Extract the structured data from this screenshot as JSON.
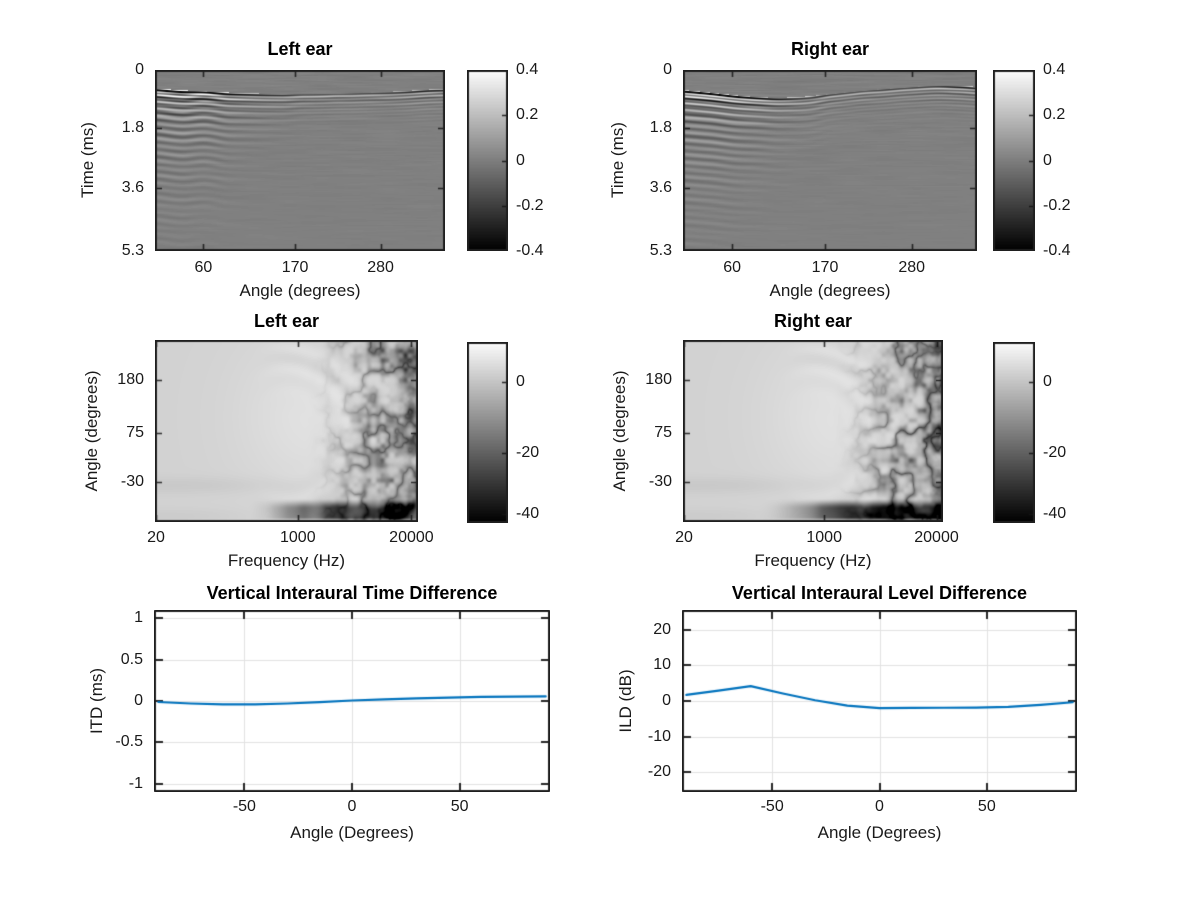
{
  "figure": {
    "background": "#ffffff",
    "text_color": "#1a1a1a",
    "title_color": "#000000",
    "line_blue": "#0072bd",
    "grid_color": "#e2e2e2",
    "axis_color": "#1f1f1f"
  },
  "chart_data": [
    {
      "id": "hrir_left",
      "type": "heatmap",
      "title": "Left ear",
      "xlabel": "Angle (degrees)",
      "ylabel": "Time (ms)",
      "xticks": [
        "60",
        "170",
        "280"
      ],
      "yticks": [
        "0",
        "1.8",
        "3.6",
        "5.3"
      ],
      "colorbar_ticks": [
        "0.4",
        "0.2",
        "0",
        "-0.2",
        "-0.4"
      ],
      "clim": [
        -0.4,
        0.4
      ],
      "colormap": "gray",
      "appearance": "mid-gray field near 0 with strong black/white oscillatory onset band near 0.5-1.2 ms across all angles, strongest at low angles, faint ripples decaying to about 2.5 ms"
    },
    {
      "id": "hrir_right",
      "type": "heatmap",
      "title": "Right ear",
      "xlabel": "Angle (degrees)",
      "ylabel": "Time (ms)",
      "xticks": [
        "60",
        "170",
        "280"
      ],
      "yticks": [
        "0",
        "1.8",
        "3.6",
        "5.3"
      ],
      "colorbar_ticks": [
        "0.4",
        "0.2",
        "0",
        "-0.2",
        "-0.4"
      ],
      "clim": [
        -0.4,
        0.4
      ],
      "colormap": "gray",
      "appearance": "mid-gray field with oscillatory onset band that sags slightly around 60-140 degrees, deeper ripple tail on the left half, band brightens again at high angles"
    },
    {
      "id": "htf_left",
      "type": "heatmap",
      "title": "Left ear",
      "xlabel": "Frequency (Hz)",
      "ylabel": "Angle (degrees)",
      "xscale": "log",
      "xticks": [
        "20",
        "1000",
        "20000"
      ],
      "yticks": [
        "180",
        "75",
        "-30"
      ],
      "colorbar_ticks": [
        "0",
        "-20",
        "-40"
      ],
      "clim": [
        -43,
        12
      ],
      "colormap": "gray",
      "appearance": "uniform light gray (about -3 dB) below 2 kHz, brighter lobe 1-8 kHz, deep irregular dark notches toward -40 dB above 8 kHz, dark horizontal notch band near the bottom (low angles) at mid-to-high frequencies"
    },
    {
      "id": "htf_right",
      "type": "heatmap",
      "title": "Right ear",
      "xlabel": "Frequency (Hz)",
      "ylabel": "Angle (degrees)",
      "xscale": "log",
      "xticks": [
        "20",
        "1000",
        "20000"
      ],
      "yticks": [
        "180",
        "75",
        "-30"
      ],
      "colorbar_ticks": [
        "0",
        "-20",
        "-40"
      ],
      "clim": [
        -43,
        12
      ],
      "colormap": "gray",
      "appearance": "same structure as left ear with slightly stronger dark bottom band and denser high-frequency notches"
    },
    {
      "id": "itd",
      "type": "line",
      "title": "Vertical Interaural Time Difference",
      "xlabel": "Angle (Degrees)",
      "ylabel": "ITD (ms)",
      "xticks": [
        -50,
        0,
        50
      ],
      "yticks": [
        1,
        0.5,
        0,
        -0.5,
        -1
      ],
      "xlim": [
        -92,
        92
      ],
      "ylim": [
        -1.1,
        1.1
      ],
      "grid": true,
      "line_color": "#0072bd",
      "series": [
        {
          "name": "ITD",
          "x": [
            -90,
            -75,
            -60,
            -45,
            -30,
            -15,
            0,
            15,
            30,
            45,
            60,
            75,
            90
          ],
          "y": [
            -0.012,
            -0.03,
            -0.04,
            -0.04,
            -0.03,
            -0.013,
            0.006,
            0.02,
            0.032,
            0.042,
            0.05,
            0.053,
            0.055
          ]
        }
      ]
    },
    {
      "id": "ild",
      "type": "line",
      "title": "Vertical Interaural Level Difference",
      "xlabel": "Angle (Degrees)",
      "ylabel": "ILD (dB)",
      "xticks": [
        -50,
        0,
        50
      ],
      "yticks": [
        20,
        10,
        0,
        -10,
        -20
      ],
      "xlim": [
        -92,
        92
      ],
      "ylim": [
        -25.6,
        25.6
      ],
      "grid": true,
      "line_color": "#0072bd",
      "series": [
        {
          "name": "ILD",
          "x": [
            -90,
            -75,
            -60,
            -45,
            -30,
            -15,
            0,
            15,
            30,
            45,
            60,
            75,
            90
          ],
          "y": [
            1.7,
            2.9,
            4.2,
            2.1,
            0.2,
            -1.3,
            -2.0,
            -1.95,
            -1.9,
            -1.85,
            -1.65,
            -1.1,
            -0.35
          ]
        }
      ]
    }
  ]
}
